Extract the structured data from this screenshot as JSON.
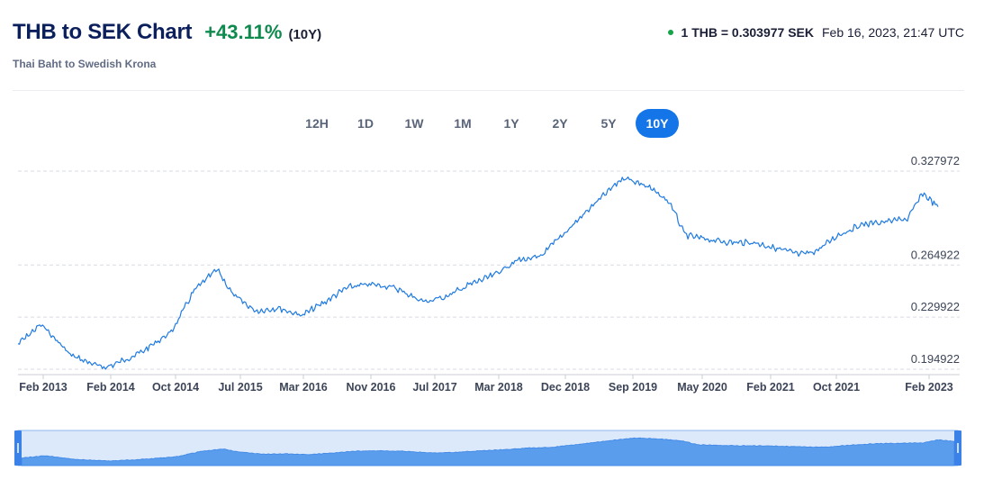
{
  "header": {
    "title": "THB to SEK Chart",
    "change": "+43.11%",
    "period": "(10Y)",
    "subtitle": "Thai Baht to Swedish Krona",
    "rate": "1 THB = 0.303977 SEK",
    "timestamp": "Feb 16, 2023, 21:47 UTC"
  },
  "ranges": [
    "12H",
    "1D",
    "1W",
    "1M",
    "1Y",
    "2Y",
    "5Y",
    "10Y"
  ],
  "active_range": "10Y",
  "colors": {
    "line": "#1f7ae0",
    "accent": "#1375e8",
    "positive": "#0e8a4e",
    "navigator_fill": "#5b9ded"
  },
  "chart_data": {
    "type": "line",
    "title": "THB to SEK Chart",
    "x_ticks": [
      "Feb 2013",
      "Feb 2014",
      "Oct 2014",
      "Jul 2015",
      "Mar 2016",
      "Nov 2016",
      "Jul 2017",
      "Mar 2018",
      "Dec 2018",
      "Sep 2019",
      "May 2020",
      "Feb 2021",
      "Oct 2021",
      "Feb 2023"
    ],
    "y_ticks": [
      0.194922,
      0.229922,
      0.264922,
      0.327972
    ],
    "ylim": [
      0.194922,
      0.327972
    ],
    "xlim": [
      "2013-02",
      "2023-02"
    ],
    "grid": "horizontal-dashed",
    "series": [
      {
        "x": [
          "2013-02",
          "2013-05",
          "2013-09",
          "2014-01",
          "2014-02",
          "2014-06",
          "2014-10",
          "2015-01",
          "2015-04",
          "2015-06",
          "2015-09",
          "2015-12",
          "2016-03",
          "2016-06",
          "2016-09",
          "2016-12",
          "2017-03",
          "2017-07",
          "2017-10",
          "2018-01",
          "2018-04",
          "2018-07",
          "2018-10",
          "2018-12",
          "2019-02",
          "2019-05",
          "2019-09",
          "2019-12",
          "2020-03",
          "2020-05",
          "2020-08",
          "2020-11",
          "2021-02",
          "2021-05",
          "2021-08",
          "2021-10",
          "2022-01",
          "2022-04",
          "2022-07",
          "2022-10",
          "2022-12",
          "2023-02"
        ],
        "y": [
          0.212,
          0.225,
          0.204,
          0.196,
          0.197,
          0.206,
          0.22,
          0.248,
          0.262,
          0.245,
          0.234,
          0.236,
          0.231,
          0.24,
          0.25,
          0.252,
          0.25,
          0.24,
          0.244,
          0.252,
          0.258,
          0.268,
          0.27,
          0.28,
          0.29,
          0.305,
          0.324,
          0.318,
          0.307,
          0.285,
          0.282,
          0.28,
          0.28,
          0.276,
          0.272,
          0.274,
          0.285,
          0.292,
          0.294,
          0.296,
          0.313,
          0.304
        ]
      }
    ]
  }
}
